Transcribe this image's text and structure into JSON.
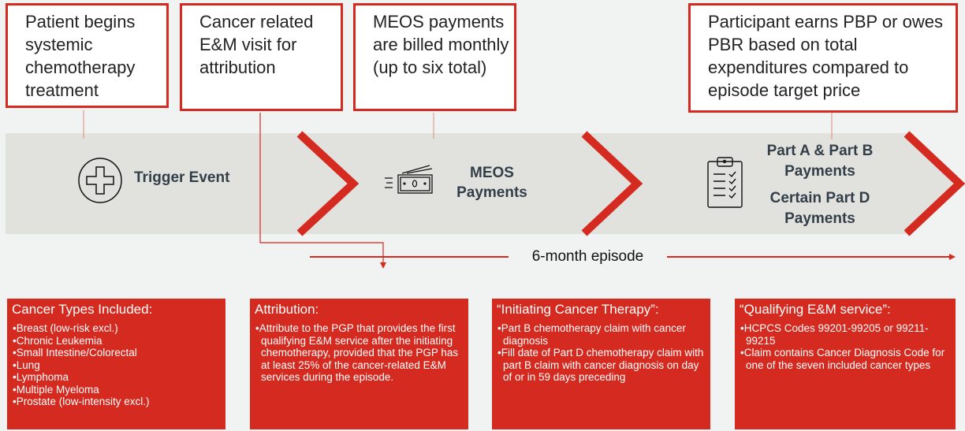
{
  "callouts": [
    "Patient begins systemic chemotherapy treatment",
    "Cancer related E&M visit for attribution",
    "MEOS payments are billed monthly (up to six total)",
    "Participant earns PBP or owes PBR based on total expenditures compared to episode target price"
  ],
  "timeline": {
    "stage1": {
      "label": "Trigger Event",
      "icon": "medical-cross-icon"
    },
    "stage2": {
      "label_line1": "MEOS",
      "label_line2": "Payments",
      "icon": "money-icon"
    },
    "stage3": {
      "label_a": "Part A & Part B Payments",
      "label_b": "Certain Part D Payments",
      "icon": "clipboard-checklist-icon"
    },
    "episode_label": "6-month episode",
    "accent_color": "#d42a20",
    "band_color": "#e1e1dd"
  },
  "info_boxes": [
    {
      "title": "Cancer Types Included:",
      "items": [
        "Breast (low-risk excl.)",
        "Chronic Leukemia",
        "Small Intestine/Colorectal",
        "Lung",
        "Lymphoma",
        "Multiple Myeloma",
        "Prostate (low-intensity excl.)"
      ]
    },
    {
      "title": "Attribution:",
      "items": [
        "Attribute to the PGP that provides the first qualifying E&M service after the initiating chemotherapy, provided that the PGP has at least 25% of the cancer-related E&M services during the episode."
      ]
    },
    {
      "title": "“Initiating Cancer Therapy”:",
      "items": [
        "Part B chemotherapy claim with cancer diagnosis",
        "Fill date of Part D chemotherapy claim with part B claim with cancer diagnosis on day of or in 59 days preceding"
      ]
    },
    {
      "title": "“Qualifying E&M service”:",
      "items": [
        "HCPCS Codes 99201-99205 or 99211-99215",
        "Claim contains Cancer Diagnosis Code for one of the seven included cancer types"
      ]
    }
  ]
}
